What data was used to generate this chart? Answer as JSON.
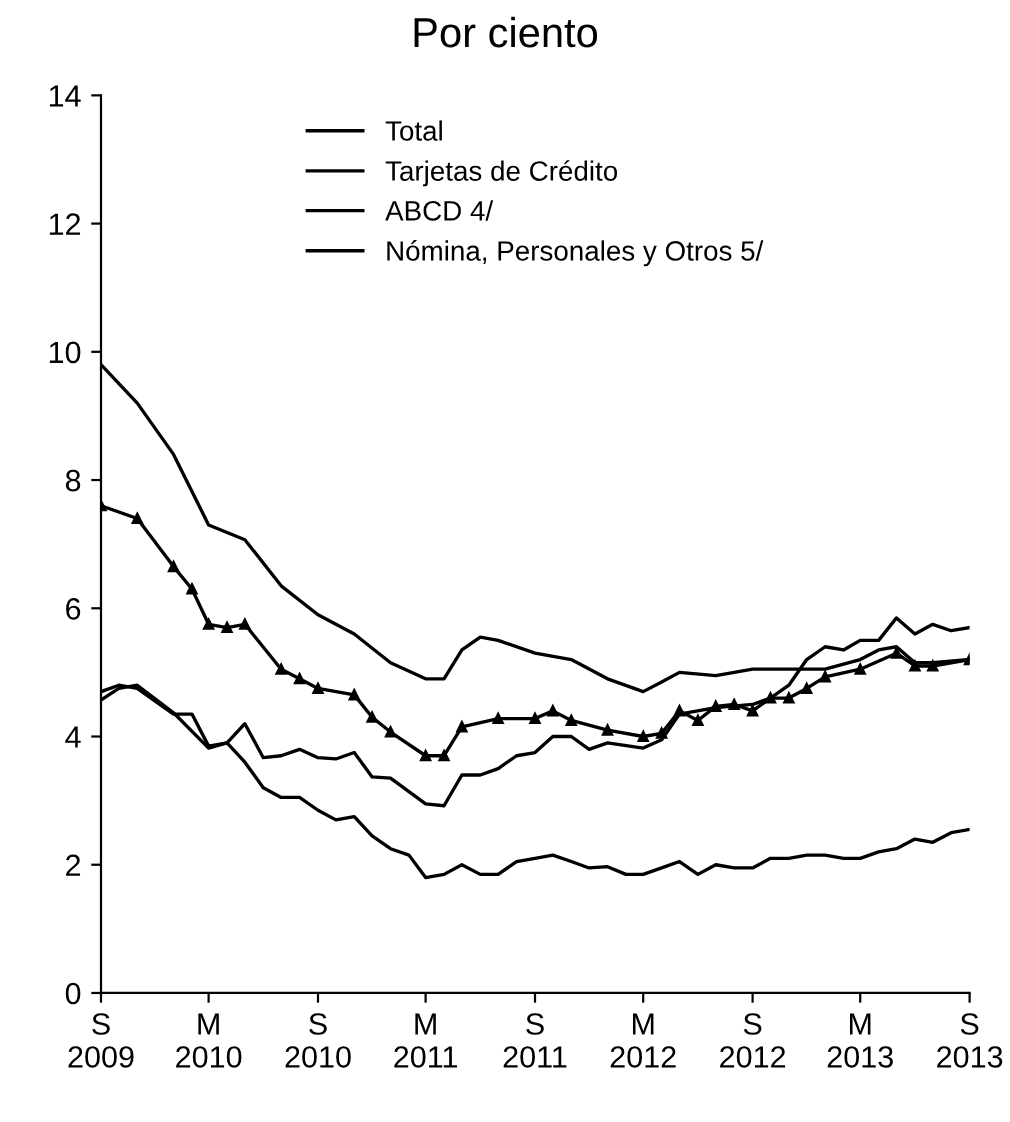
{
  "chart_data": {
    "type": "line",
    "title": "Por ciento",
    "xlim": [
      "2009-09",
      "2013-09"
    ],
    "xticks": [
      {
        "value": "2009-09",
        "label": "S\n2009"
      },
      {
        "value": "2010-03",
        "label": "M\n2010"
      },
      {
        "value": "2010-09",
        "label": "S\n2010"
      },
      {
        "value": "2011-03",
        "label": "M\n2011"
      },
      {
        "value": "2011-09",
        "label": "S\n2011"
      },
      {
        "value": "2012-03",
        "label": "M\n2012"
      },
      {
        "value": "2012-09",
        "label": "S\n2012"
      },
      {
        "value": "2013-03",
        "label": "M\n2013"
      },
      {
        "value": "2013-09",
        "label": "S\n2013"
      }
    ],
    "ylim": [
      0,
      14
    ],
    "yticks": [
      0,
      2,
      4,
      6,
      8,
      10,
      12,
      14
    ],
    "grid": false,
    "legend": "top",
    "line_style": "solid",
    "series": [
      {
        "name": "Total",
        "color": "#000000",
        "marker": "triangle",
        "x": [
          "2009-09",
          "2009-11",
          "2010-01",
          "2010-02",
          "2010-03",
          "2010-04",
          "2010-05",
          "2010-07",
          "2010-08",
          "2010-09",
          "2010-11",
          "2010-12",
          "2011-01",
          "2011-03",
          "2011-04",
          "2011-05",
          "2011-07",
          "2011-09",
          "2011-10",
          "2011-11",
          "2012-01",
          "2012-03",
          "2012-04",
          "2012-05",
          "2012-06",
          "2012-07",
          "2012-08",
          "2012-09",
          "2012-10",
          "2012-11",
          "2012-12",
          "2013-01",
          "2013-03",
          "2013-05",
          "2013-06",
          "2013-07",
          "2013-09"
        ],
        "values": [
          7.6,
          7.4,
          6.65,
          6.3,
          5.75,
          5.7,
          5.75,
          5.05,
          4.9,
          4.75,
          4.65,
          4.3,
          4.07,
          3.7,
          3.7,
          4.15,
          4.28,
          4.28,
          4.4,
          4.25,
          4.1,
          4.0,
          4.05,
          4.4,
          4.25,
          4.47,
          4.5,
          4.4,
          4.6,
          4.6,
          4.75,
          4.93,
          5.05,
          5.3,
          5.1,
          5.1,
          5.2
        ]
      },
      {
        "name": "Tarjetas de Crédito",
        "color": "#000000",
        "marker": "none",
        "x": [
          "2009-09",
          "2009-11",
          "2010-01",
          "2010-03",
          "2010-05",
          "2010-07",
          "2010-09",
          "2010-11",
          "2011-01",
          "2011-03",
          "2011-04",
          "2011-05",
          "2011-06",
          "2011-07",
          "2011-09",
          "2011-11",
          "2012-01",
          "2012-03",
          "2012-04",
          "2012-05",
          "2012-07",
          "2012-09",
          "2012-11",
          "2013-01",
          "2013-03",
          "2013-04",
          "2013-05",
          "2013-06",
          "2013-07",
          "2013-09"
        ],
        "values": [
          9.8,
          9.2,
          8.4,
          7.3,
          7.07,
          6.35,
          5.9,
          5.6,
          5.15,
          4.9,
          4.9,
          5.35,
          5.55,
          5.5,
          5.3,
          5.2,
          4.9,
          4.7,
          4.85,
          5.0,
          4.95,
          5.05,
          5.05,
          5.05,
          5.2,
          5.35,
          5.4,
          5.15,
          5.15,
          5.2
        ]
      },
      {
        "name": "ABCD 4/",
        "color": "#000000",
        "marker": "none",
        "x": [
          "2009-09",
          "2009-10",
          "2009-11",
          "2009-12",
          "2010-01",
          "2010-02",
          "2010-03",
          "2010-04",
          "2010-05",
          "2010-06",
          "2010-07",
          "2010-08",
          "2010-09",
          "2010-10",
          "2010-11",
          "2010-12",
          "2011-01",
          "2011-02",
          "2011-03",
          "2011-04",
          "2011-05",
          "2011-06",
          "2011-07",
          "2011-08",
          "2011-09",
          "2011-10",
          "2011-11",
          "2011-12",
          "2012-01",
          "2012-02",
          "2012-03",
          "2012-04",
          "2012-05",
          "2012-06",
          "2012-07",
          "2012-08",
          "2012-09",
          "2012-10",
          "2012-11",
          "2012-12",
          "2013-01",
          "2013-02",
          "2013-03",
          "2013-04",
          "2013-05",
          "2013-06",
          "2013-07",
          "2013-08",
          "2013-09"
        ],
        "values": [
          4.7,
          4.8,
          4.75,
          4.55,
          4.35,
          4.35,
          3.85,
          3.9,
          3.6,
          3.2,
          3.05,
          3.05,
          2.85,
          2.7,
          2.75,
          2.45,
          2.25,
          2.15,
          1.8,
          1.85,
          2.0,
          1.85,
          1.85,
          2.05,
          2.1,
          2.15,
          2.05,
          1.95,
          1.97,
          1.85,
          1.85,
          1.95,
          2.05,
          1.85,
          2.0,
          1.95,
          1.95,
          2.1,
          2.1,
          2.15,
          2.15,
          2.1,
          2.1,
          2.2,
          2.25,
          2.4,
          2.35,
          2.5,
          2.55
        ]
      },
      {
        "name": "Nómina, Personales y Otros 5/",
        "color": "#000000",
        "marker": "none",
        "x": [
          "2009-09",
          "2009-10",
          "2009-11",
          "2010-01",
          "2010-03",
          "2010-04",
          "2010-05",
          "2010-06",
          "2010-07",
          "2010-08",
          "2010-09",
          "2010-10",
          "2010-11",
          "2010-12",
          "2011-01",
          "2011-03",
          "2011-04",
          "2011-05",
          "2011-06",
          "2011-07",
          "2011-08",
          "2011-09",
          "2011-10",
          "2011-11",
          "2011-12",
          "2012-01",
          "2012-03",
          "2012-04",
          "2012-05",
          "2012-07",
          "2012-09",
          "2012-10",
          "2012-11",
          "2012-12",
          "2013-01",
          "2013-02",
          "2013-03",
          "2013-04",
          "2013-05",
          "2013-06",
          "2013-07",
          "2013-08",
          "2013-09"
        ],
        "values": [
          4.57,
          4.75,
          4.8,
          4.37,
          3.82,
          3.9,
          4.2,
          3.67,
          3.7,
          3.8,
          3.67,
          3.65,
          3.75,
          3.37,
          3.35,
          2.95,
          2.92,
          3.4,
          3.4,
          3.5,
          3.7,
          3.75,
          4.0,
          4.0,
          3.8,
          3.9,
          3.82,
          3.95,
          4.35,
          4.45,
          4.5,
          4.6,
          4.8,
          5.2,
          5.4,
          5.35,
          5.5,
          5.5,
          5.85,
          5.6,
          5.75,
          5.65,
          5.7
        ]
      }
    ]
  }
}
